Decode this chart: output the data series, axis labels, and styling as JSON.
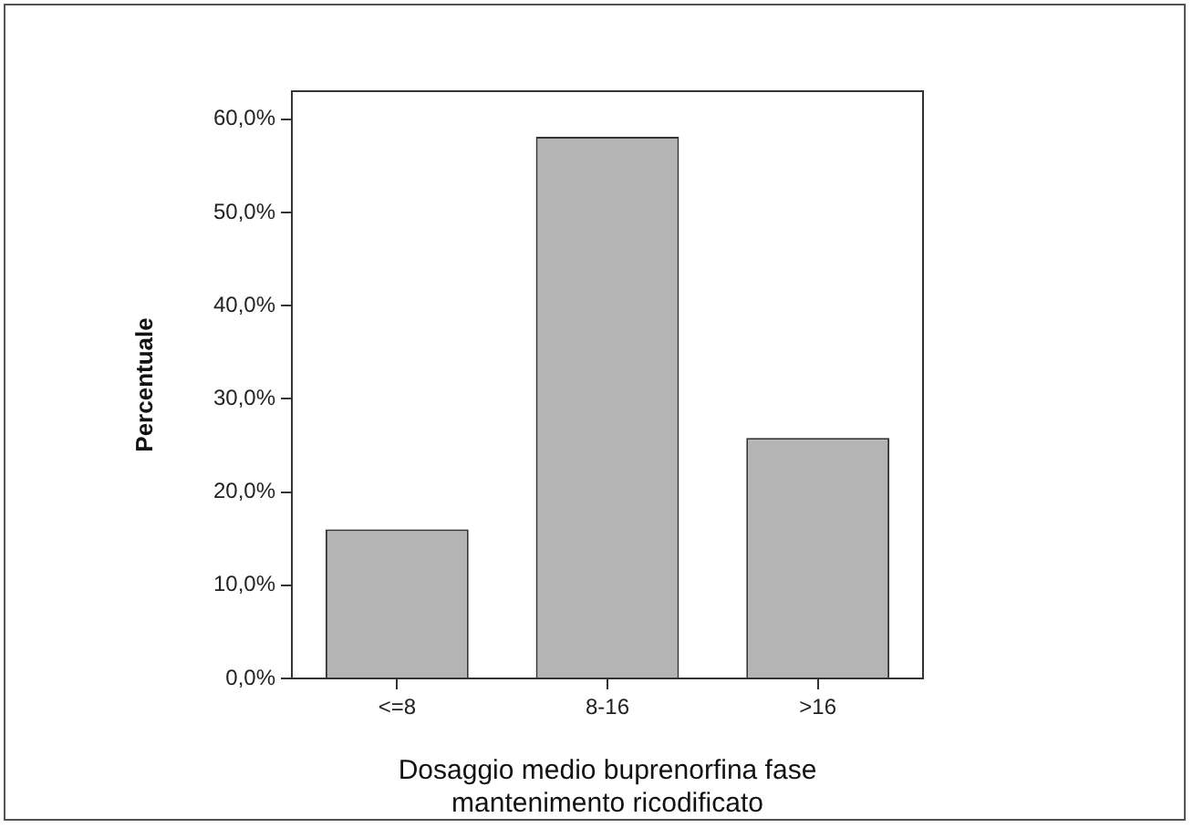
{
  "chart_data": {
    "type": "bar",
    "xlabel": "Dosaggio medio buprenorfina fase mantenimento ricodificato",
    "ylabel": "Percentuale",
    "categories": [
      "<=8",
      "8-16",
      ">16"
    ],
    "values": [
      16.0,
      58.1,
      25.8
    ],
    "color": "#b4b4b4",
    "ylim": [
      0,
      63
    ],
    "yticks": [
      {
        "value": 0,
        "label": "0,0%"
      },
      {
        "value": 10,
        "label": "10,0%"
      },
      {
        "value": 20,
        "label": "20,0%"
      },
      {
        "value": 30,
        "label": "30,0%"
      },
      {
        "value": 40,
        "label": "40,0%"
      },
      {
        "value": 50,
        "label": "50,0%"
      },
      {
        "value": 60,
        "label": "60,0%"
      }
    ],
    "grid": false,
    "legend": false
  }
}
